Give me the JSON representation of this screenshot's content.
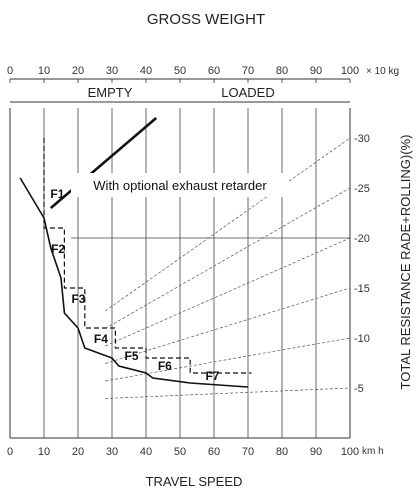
{
  "chart_data": {
    "type": "line",
    "title": "GROSS WEIGHT",
    "xlabel": "TRAVEL SPEED",
    "x_unit": "km h",
    "ylabel": "TOTAL RESISTANCE  RADE+ROLLING)(%)",
    "top_axis": {
      "ticks": [
        "0",
        "10",
        "20",
        "30",
        "40",
        "50",
        "60",
        "70",
        "80",
        "90",
        "100"
      ],
      "unit": "× 10 kg",
      "range": [
        0,
        100
      ],
      "labels": [
        "EMPTY",
        "LOADED"
      ]
    },
    "x_ticks": [
      "0",
      "10",
      "20",
      "30",
      "40",
      "50",
      "60",
      "70",
      "80",
      "90",
      "100"
    ],
    "x_range": [
      0,
      100
    ],
    "y_right_ticks": [
      "-30",
      "-25",
      "-20",
      "-15",
      "-10",
      "-5"
    ],
    "y_right_range": [
      0,
      33
    ],
    "annotation": "With optional exhaust retarder",
    "gears": [
      {
        "label": "F1",
        "speed": [
          10,
          10
        ]
      },
      {
        "label": "F2",
        "speed": [
          10,
          16
        ]
      },
      {
        "label": "F3",
        "speed": [
          16,
          22
        ]
      },
      {
        "label": "F4",
        "speed": [
          22,
          31
        ]
      },
      {
        "label": "F5",
        "speed": [
          31,
          40
        ]
      },
      {
        "label": "F6",
        "speed": [
          40,
          53
        ]
      },
      {
        "label": "F7",
        "speed": [
          53,
          71
        ]
      }
    ],
    "series": [
      {
        "style": "solid",
        "points": [
          [
            3,
            26
          ],
          [
            10,
            22
          ],
          [
            12,
            19
          ],
          [
            15,
            16
          ],
          [
            16,
            12.5
          ],
          [
            20,
            11
          ],
          [
            22,
            9
          ],
          [
            30,
            8
          ],
          [
            32,
            7.2
          ],
          [
            40,
            6.5
          ],
          [
            42,
            6
          ],
          [
            53,
            5.5
          ],
          [
            70,
            5.1
          ]
        ]
      },
      {
        "style": "dashed",
        "points": [
          [
            10,
            30
          ],
          [
            10,
            21
          ],
          [
            16,
            21
          ],
          [
            16,
            15
          ],
          [
            22,
            15
          ],
          [
            22,
            11
          ],
          [
            31,
            11
          ],
          [
            31,
            9
          ],
          [
            40,
            9
          ],
          [
            40,
            8
          ],
          [
            53,
            8
          ],
          [
            53,
            6.5
          ],
          [
            71,
            6.5
          ]
        ]
      },
      {
        "style": "retarder",
        "points": [
          [
            12,
            23
          ],
          [
            43,
            32
          ]
        ]
      }
    ],
    "weight_lines": [
      5,
      10,
      15,
      20,
      25,
      30
    ],
    "grid": true
  }
}
